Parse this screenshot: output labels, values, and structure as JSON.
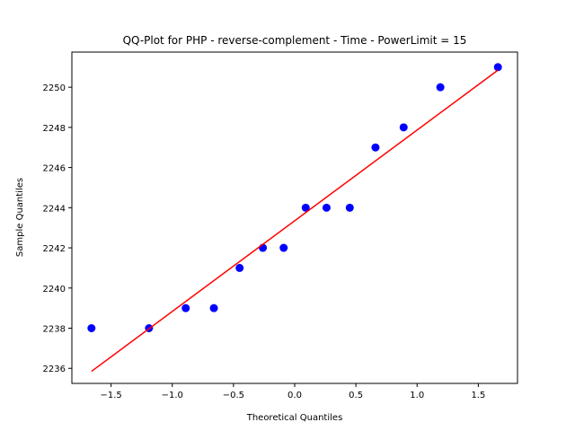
{
  "chart_data": {
    "type": "scatter",
    "title": "QQ-Plot for PHP - reverse-complement - Time - PowerLimit = 15",
    "xlabel": "Theoretical Quantiles",
    "ylabel": "Sample Quantiles",
    "xlim": [
      -1.82,
      1.82
    ],
    "ylim": [
      2235.25,
      2251.75
    ],
    "xticks": [
      -1.5,
      -1.0,
      -0.5,
      0.0,
      0.5,
      1.0,
      1.5
    ],
    "xtick_labels": [
      "−1.5",
      "−1.0",
      "−0.5",
      "0.0",
      "0.5",
      "1.0",
      "1.5"
    ],
    "yticks": [
      2236,
      2238,
      2240,
      2242,
      2244,
      2246,
      2248,
      2250
    ],
    "ytick_labels": [
      "2236",
      "2238",
      "2240",
      "2242",
      "2244",
      "2246",
      "2248",
      "2250"
    ],
    "grid": false,
    "series": [
      {
        "name": "samples",
        "kind": "points",
        "color": "#0000ff",
        "x": [
          -1.66,
          -1.19,
          -0.89,
          -0.66,
          -0.45,
          -0.26,
          -0.09,
          0.09,
          0.26,
          0.45,
          0.66,
          0.89,
          1.19,
          1.66
        ],
        "y": [
          2238,
          2238,
          2239,
          2239,
          2241,
          2242,
          2242,
          2244,
          2244,
          2244,
          2247,
          2248,
          2250,
          2251
        ]
      },
      {
        "name": "reference line",
        "kind": "line",
        "color": "#ff0000",
        "x": [
          -1.66,
          1.66
        ],
        "y": [
          2235.85,
          2250.85
        ]
      }
    ]
  }
}
